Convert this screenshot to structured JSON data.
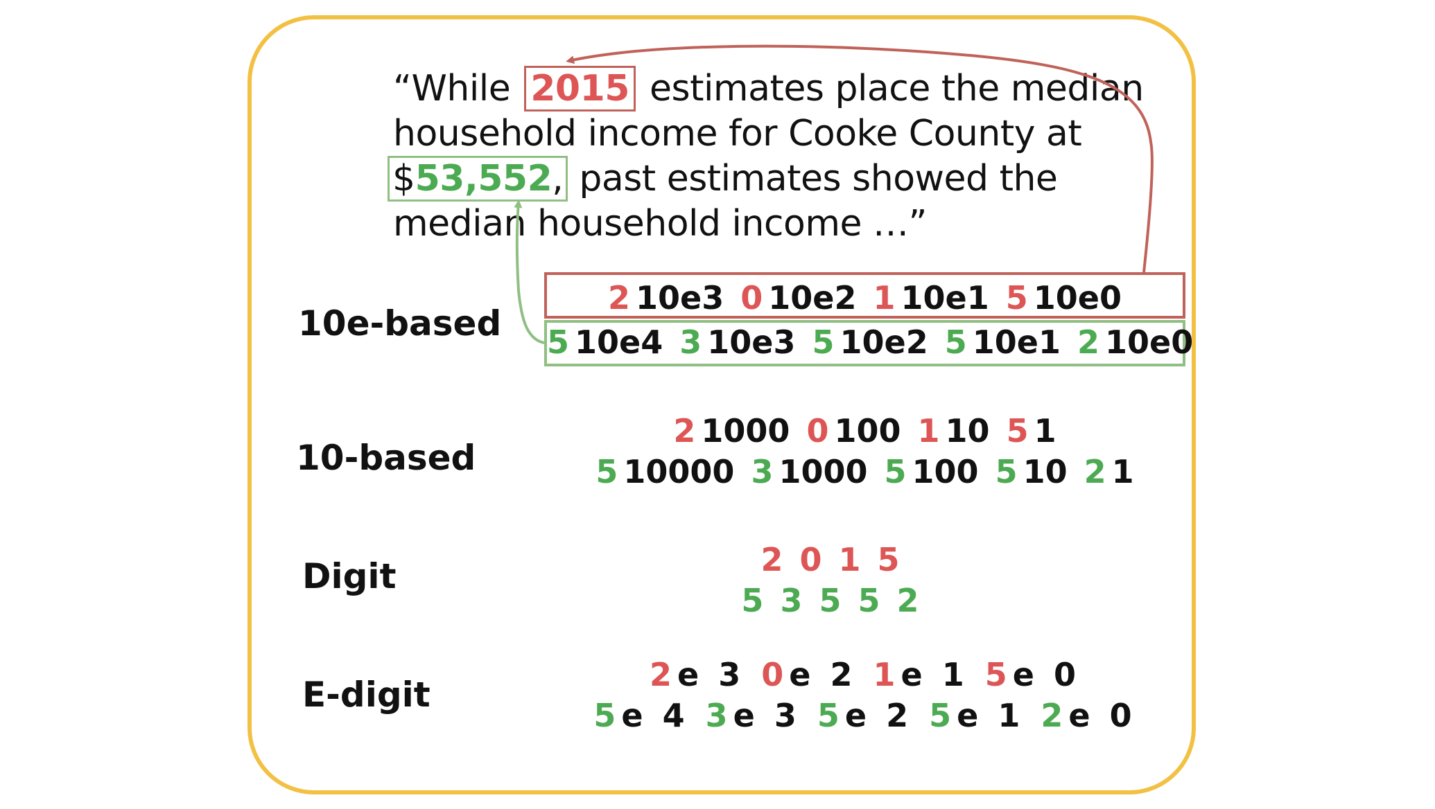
{
  "colors": {
    "frame": "#f2c144",
    "red": "#dd5555",
    "red_box": "#c0625a",
    "green": "#4caa52",
    "green_box": "#8fbf83",
    "text": "#111111"
  },
  "quote": {
    "line1_pre": "“While",
    "year": "2015",
    "line1_post": "estimates place the median",
    "line2": "household income for Cooke County at",
    "currency": "$",
    "amount": "53,552",
    "amount_suffix": ",",
    "line3_post": "past estimates showed the",
    "line4": "median household income …”"
  },
  "schemes": [
    {
      "label": "10e-based",
      "red_tokens": [
        [
          "2",
          "10e3"
        ],
        [
          "0",
          "10e2"
        ],
        [
          "1",
          "10e1"
        ],
        [
          "5",
          "10e0"
        ]
      ],
      "green_tokens": [
        [
          "5",
          "10e4"
        ],
        [
          "3",
          "10e3"
        ],
        [
          "5",
          "10e2"
        ],
        [
          "5",
          "10e1"
        ],
        [
          "2",
          "10e0"
        ]
      ]
    },
    {
      "label": "10-based",
      "red_tokens": [
        [
          "2",
          "1000"
        ],
        [
          "0",
          "100"
        ],
        [
          "1",
          "10"
        ],
        [
          "5",
          "1"
        ]
      ],
      "green_tokens": [
        [
          "5",
          "10000"
        ],
        [
          "3",
          "1000"
        ],
        [
          "5",
          "100"
        ],
        [
          "5",
          "10"
        ],
        [
          "2",
          "1"
        ]
      ]
    },
    {
      "label": "Digit",
      "red_tokens": [
        [
          "2",
          ""
        ],
        [
          "0",
          ""
        ],
        [
          "1",
          ""
        ],
        [
          "5",
          ""
        ]
      ],
      "green_tokens": [
        [
          "5",
          ""
        ],
        [
          "3",
          ""
        ],
        [
          "5",
          ""
        ],
        [
          "5",
          ""
        ],
        [
          "2",
          ""
        ]
      ]
    },
    {
      "label": "E-digit",
      "red_tokens": [
        [
          "2",
          "e 3"
        ],
        [
          "0",
          "e 2"
        ],
        [
          "1",
          "e 1"
        ],
        [
          "5",
          "e 0"
        ]
      ],
      "green_tokens": [
        [
          "5",
          "e 4"
        ],
        [
          "3",
          "e 3"
        ],
        [
          "5",
          "e 2"
        ],
        [
          "5",
          "e 1"
        ],
        [
          "2",
          "e 0"
        ]
      ]
    }
  ]
}
